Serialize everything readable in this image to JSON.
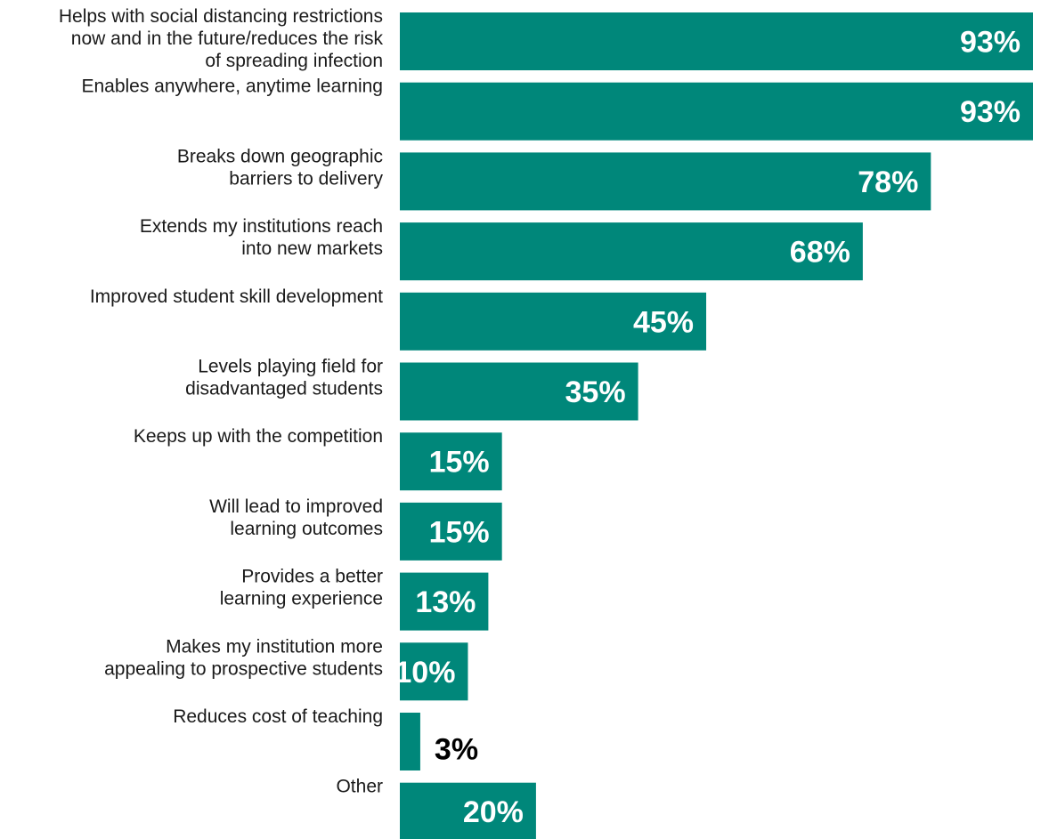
{
  "chart_data": {
    "type": "bar",
    "orientation": "horizontal",
    "categories": [
      "Helps with social distancing restrictions now and in the future/reduces the risk of spreading infection",
      "Enables anywhere, anytime learning",
      "Breaks down geographic barriers to delivery",
      "Extends my institutions reach into new markets",
      "Improved student skill development",
      "Levels playing field for disadvantaged students",
      "Keeps up with the competition",
      "Will lead to improved learning outcomes",
      "Provides a better learning experience",
      "Makes my institution more appealing to prospective students",
      "Reduces cost of teaching",
      "Other"
    ],
    "category_lines": [
      [
        "Helps with social distancing restrictions",
        "now and in the future/reduces the risk",
        "of spreading infection"
      ],
      [
        "Enables anywhere, anytime learning"
      ],
      [
        "Breaks down geographic",
        "barriers to delivery"
      ],
      [
        "Extends my institutions reach",
        "into new markets"
      ],
      [
        "Improved student skill development"
      ],
      [
        "Levels playing field for",
        "disadvantaged students"
      ],
      [
        "Keeps up with the competition"
      ],
      [
        "Will lead to improved",
        "learning outcomes"
      ],
      [
        "Provides a better",
        "learning experience"
      ],
      [
        "Makes my institution more",
        "appealing to prospective students"
      ],
      [
        "Reduces cost of teaching"
      ],
      [
        "Other"
      ]
    ],
    "values": [
      93,
      93,
      78,
      68,
      45,
      35,
      15,
      15,
      13,
      10,
      3,
      20
    ],
    "value_labels": [
      "93%",
      "93%",
      "78%",
      "68%",
      "45%",
      "35%",
      "15%",
      "15%",
      "13%",
      "10%",
      "3%",
      "20%"
    ],
    "xlim": [
      0,
      93
    ],
    "grid": false,
    "legend": "none",
    "title": "",
    "xlabel": "",
    "ylabel": "",
    "colors": {
      "bar": "#00877A",
      "label_inside": "#ffffff",
      "label_outside": "#000000",
      "category_text": "#1a1a1a"
    }
  }
}
